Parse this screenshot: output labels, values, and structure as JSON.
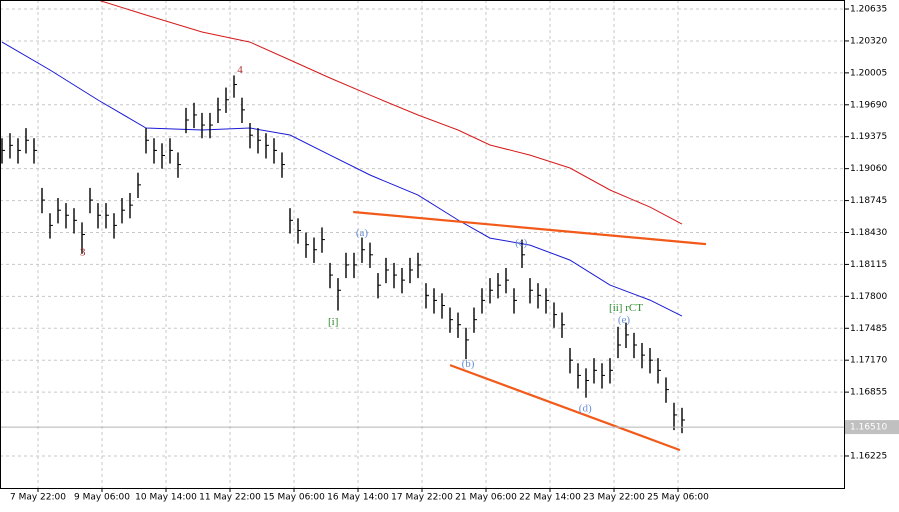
{
  "chart_data": {
    "type": "ohlc",
    "xlim": [
      -0.25,
      105.375
    ],
    "ylim": [
      1.15909,
      1.20724
    ],
    "grid": true,
    "xticks": [
      {
        "value": 4.5,
        "label": "7 May 22:00"
      },
      {
        "value": 12.5,
        "label": "9 May 06:00"
      },
      {
        "value": 20.5,
        "label": "10 May 14:00"
      },
      {
        "value": 28.5,
        "label": "11 May 22:00"
      },
      {
        "value": 36.5,
        "label": "15 May 06:00"
      },
      {
        "value": 44.5,
        "label": "16 May 14:00"
      },
      {
        "value": 52.5,
        "label": "17 May 22:00"
      },
      {
        "value": 60.5,
        "label": "21 May 06:00"
      },
      {
        "value": 68.5,
        "label": "22 May 14:00"
      },
      {
        "value": 76.5,
        "label": "23 May 22:00"
      },
      {
        "value": 84.5,
        "label": "25 May 06:00"
      }
    ],
    "yticks": [
      1.20635,
      {
        "value": 1.2032,
        "label": "1.20320"
      },
      1.20005,
      {
        "value": 1.1969,
        "label": "1.19690"
      },
      1.19375,
      {
        "value": 1.1906,
        "label": "1.19060"
      },
      1.18745,
      {
        "value": 1.1843,
        "label": "1.18430"
      },
      1.18115,
      {
        "value": 1.178,
        "label": "1.17800"
      },
      1.17485,
      {
        "value": 1.1717,
        "label": "1.17170"
      },
      1.16855,
      1.16225
    ],
    "bar_color": "#000000",
    "high": [
      1.1936,
      1.1941,
      1.1936,
      1.1946,
      1.1936,
      1.1887,
      1.1862,
      1.1877,
      1.1872,
      1.1867,
      1.1853,
      1.1887,
      1.1872,
      1.1872,
      1.1862,
      1.1877,
      1.1882,
      1.1902,
      1.1946,
      1.1936,
      1.1931,
      1.1936,
      1.1922,
      1.1966,
      1.1971,
      1.1961,
      1.1961,
      1.1976,
      1.1986,
      1.1998,
      1.1976,
      1.1951,
      1.1946,
      1.1941,
      1.1936,
      1.1922,
      1.1867,
      1.1857,
      1.1843,
      1.1838,
      1.1848,
      1.1813,
      1.1798,
      1.1823,
      1.1823,
      1.1838,
      1.1833,
      1.1803,
      1.1818,
      1.1813,
      1.1808,
      1.1818,
      1.1823,
      1.1793,
      1.1788,
      1.1783,
      1.1769,
      1.1764,
      1.1749,
      1.1769,
      1.1788,
      1.1798,
      1.1803,
      1.1808,
      1.1788,
      1.1836,
      1.1798,
      1.1793,
      1.1788,
      1.1774,
      1.1764,
      1.1729,
      1.1714,
      1.1709,
      1.1719,
      1.1714,
      1.1719,
      1.175,
      1.1754,
      1.1744,
      1.1734,
      1.1729,
      1.1719,
      1.17,
      1.1675,
      1.167
    ],
    "low": [
      1.1911,
      1.1916,
      1.1911,
      1.1921,
      1.1911,
      1.1862,
      1.1837,
      1.1852,
      1.1847,
      1.1842,
      1.1822,
      1.1862,
      1.1847,
      1.1847,
      1.1837,
      1.1852,
      1.1857,
      1.1877,
      1.1921,
      1.1911,
      1.1906,
      1.1911,
      1.1897,
      1.1941,
      1.1946,
      1.1936,
      1.1936,
      1.1951,
      1.1961,
      1.1976,
      1.1951,
      1.1926,
      1.1921,
      1.1916,
      1.1911,
      1.1897,
      1.1842,
      1.1832,
      1.1818,
      1.1813,
      1.1823,
      1.1788,
      1.1766,
      1.1798,
      1.1798,
      1.1813,
      1.1808,
      1.1778,
      1.1793,
      1.1788,
      1.1783,
      1.1793,
      1.1798,
      1.1768,
      1.1763,
      1.1758,
      1.1744,
      1.1739,
      1.1718,
      1.1744,
      1.1763,
      1.1773,
      1.1778,
      1.1783,
      1.1763,
      1.1808,
      1.1773,
      1.1768,
      1.1763,
      1.1749,
      1.1739,
      1.1704,
      1.1689,
      1.168,
      1.1694,
      1.1689,
      1.1694,
      1.1719,
      1.1729,
      1.1719,
      1.1709,
      1.1704,
      1.1694,
      1.1675,
      1.1648,
      1.1645
    ],
    "close": [
      1.1924,
      1.1929,
      1.1924,
      1.1934,
      1.1924,
      1.1875,
      1.185,
      1.1865,
      1.186,
      1.1855,
      1.1841,
      1.1875,
      1.186,
      1.186,
      1.185,
      1.1865,
      1.187,
      1.189,
      1.1934,
      1.1924,
      1.1919,
      1.1924,
      1.191,
      1.1954,
      1.1959,
      1.1949,
      1.1949,
      1.1964,
      1.1974,
      1.1989,
      1.1964,
      1.1939,
      1.1934,
      1.1929,
      1.1924,
      1.191,
      1.1855,
      1.1845,
      1.1831,
      1.1826,
      1.1836,
      1.1801,
      1.1786,
      1.1811,
      1.1811,
      1.1826,
      1.1821,
      1.1791,
      1.1806,
      1.1801,
      1.1796,
      1.1806,
      1.1811,
      1.1781,
      1.1776,
      1.1771,
      1.1757,
      1.1752,
      1.1737,
      1.1757,
      1.1776,
      1.1786,
      1.1791,
      1.1796,
      1.1776,
      1.1821,
      1.1786,
      1.1781,
      1.1776,
      1.1762,
      1.1752,
      1.1717,
      1.1702,
      1.1697,
      1.1707,
      1.1702,
      1.1707,
      1.1732,
      1.1742,
      1.1732,
      1.1722,
      1.1717,
      1.1707,
      1.1688,
      1.1663,
      1.1658
    ],
    "series": [
      {
        "color": "#1a1ad6",
        "x": [
          0,
          6,
          12,
          18,
          25,
          31,
          36,
          41,
          46,
          52,
          57,
          61,
          66,
          71,
          76,
          81,
          85
        ],
        "values": [
          1.20309,
          1.20033,
          1.19737,
          1.19461,
          1.19441,
          1.19461,
          1.19392,
          1.19194,
          1.18997,
          1.18799,
          1.18553,
          1.18375,
          1.18306,
          1.18158,
          1.17911,
          1.17763,
          1.17605
        ]
      },
      {
        "color": "#d61a1a",
        "x": [
          12,
          18,
          25,
          31,
          36,
          41,
          46,
          52,
          57,
          61,
          66,
          71,
          76,
          81,
          85
        ],
        "values": [
          1.20724,
          1.20576,
          1.20408,
          1.20309,
          1.20132,
          1.19954,
          1.19786,
          1.19589,
          1.19441,
          1.19293,
          1.19194,
          1.19066,
          1.18849,
          1.18681,
          1.18513
        ]
      }
    ],
    "trendlines": [
      {
        "color": "#f25a1a",
        "x": [
          43.9,
          88
        ],
        "values": [
          1.18632,
          1.18316
        ]
      },
      {
        "color": "#f25a1a",
        "x": [
          56,
          84.75
        ],
        "values": [
          1.17122,
          1.16283
        ]
      }
    ],
    "current_price": {
      "value": 1.1651,
      "label": "1.16510"
    },
    "annotations": [
      {
        "text": "3",
        "x": 10.1,
        "y": 1.1823,
        "color": "#b03030"
      },
      {
        "text": "4",
        "x": 29.75,
        "y": 1.2003,
        "color": "#b03030"
      },
      {
        "text": "[i]",
        "x": 41.4,
        "y": 1.1754,
        "color": "#2e8b2e"
      },
      {
        "text": "(a)",
        "x": 45,
        "y": 1.1842,
        "color": "#6a8ed8"
      },
      {
        "text": "(b)",
        "x": 58.25,
        "y": 1.1713,
        "color": "#6a8ed8"
      },
      {
        "text": "(c)",
        "x": 64.9,
        "y": 1.1832,
        "color": "#6a8ed8"
      },
      {
        "text": "(d)",
        "x": 72.9,
        "y": 1.1669,
        "color": "#6a8ed8"
      },
      {
        "text": "(e)",
        "x": 77.75,
        "y": 1.1756,
        "color": "#6a8ed8"
      },
      {
        "text": "[ii] rCT",
        "x": 78,
        "y": 1.1768,
        "color": "#2e8b2e"
      }
    ]
  }
}
